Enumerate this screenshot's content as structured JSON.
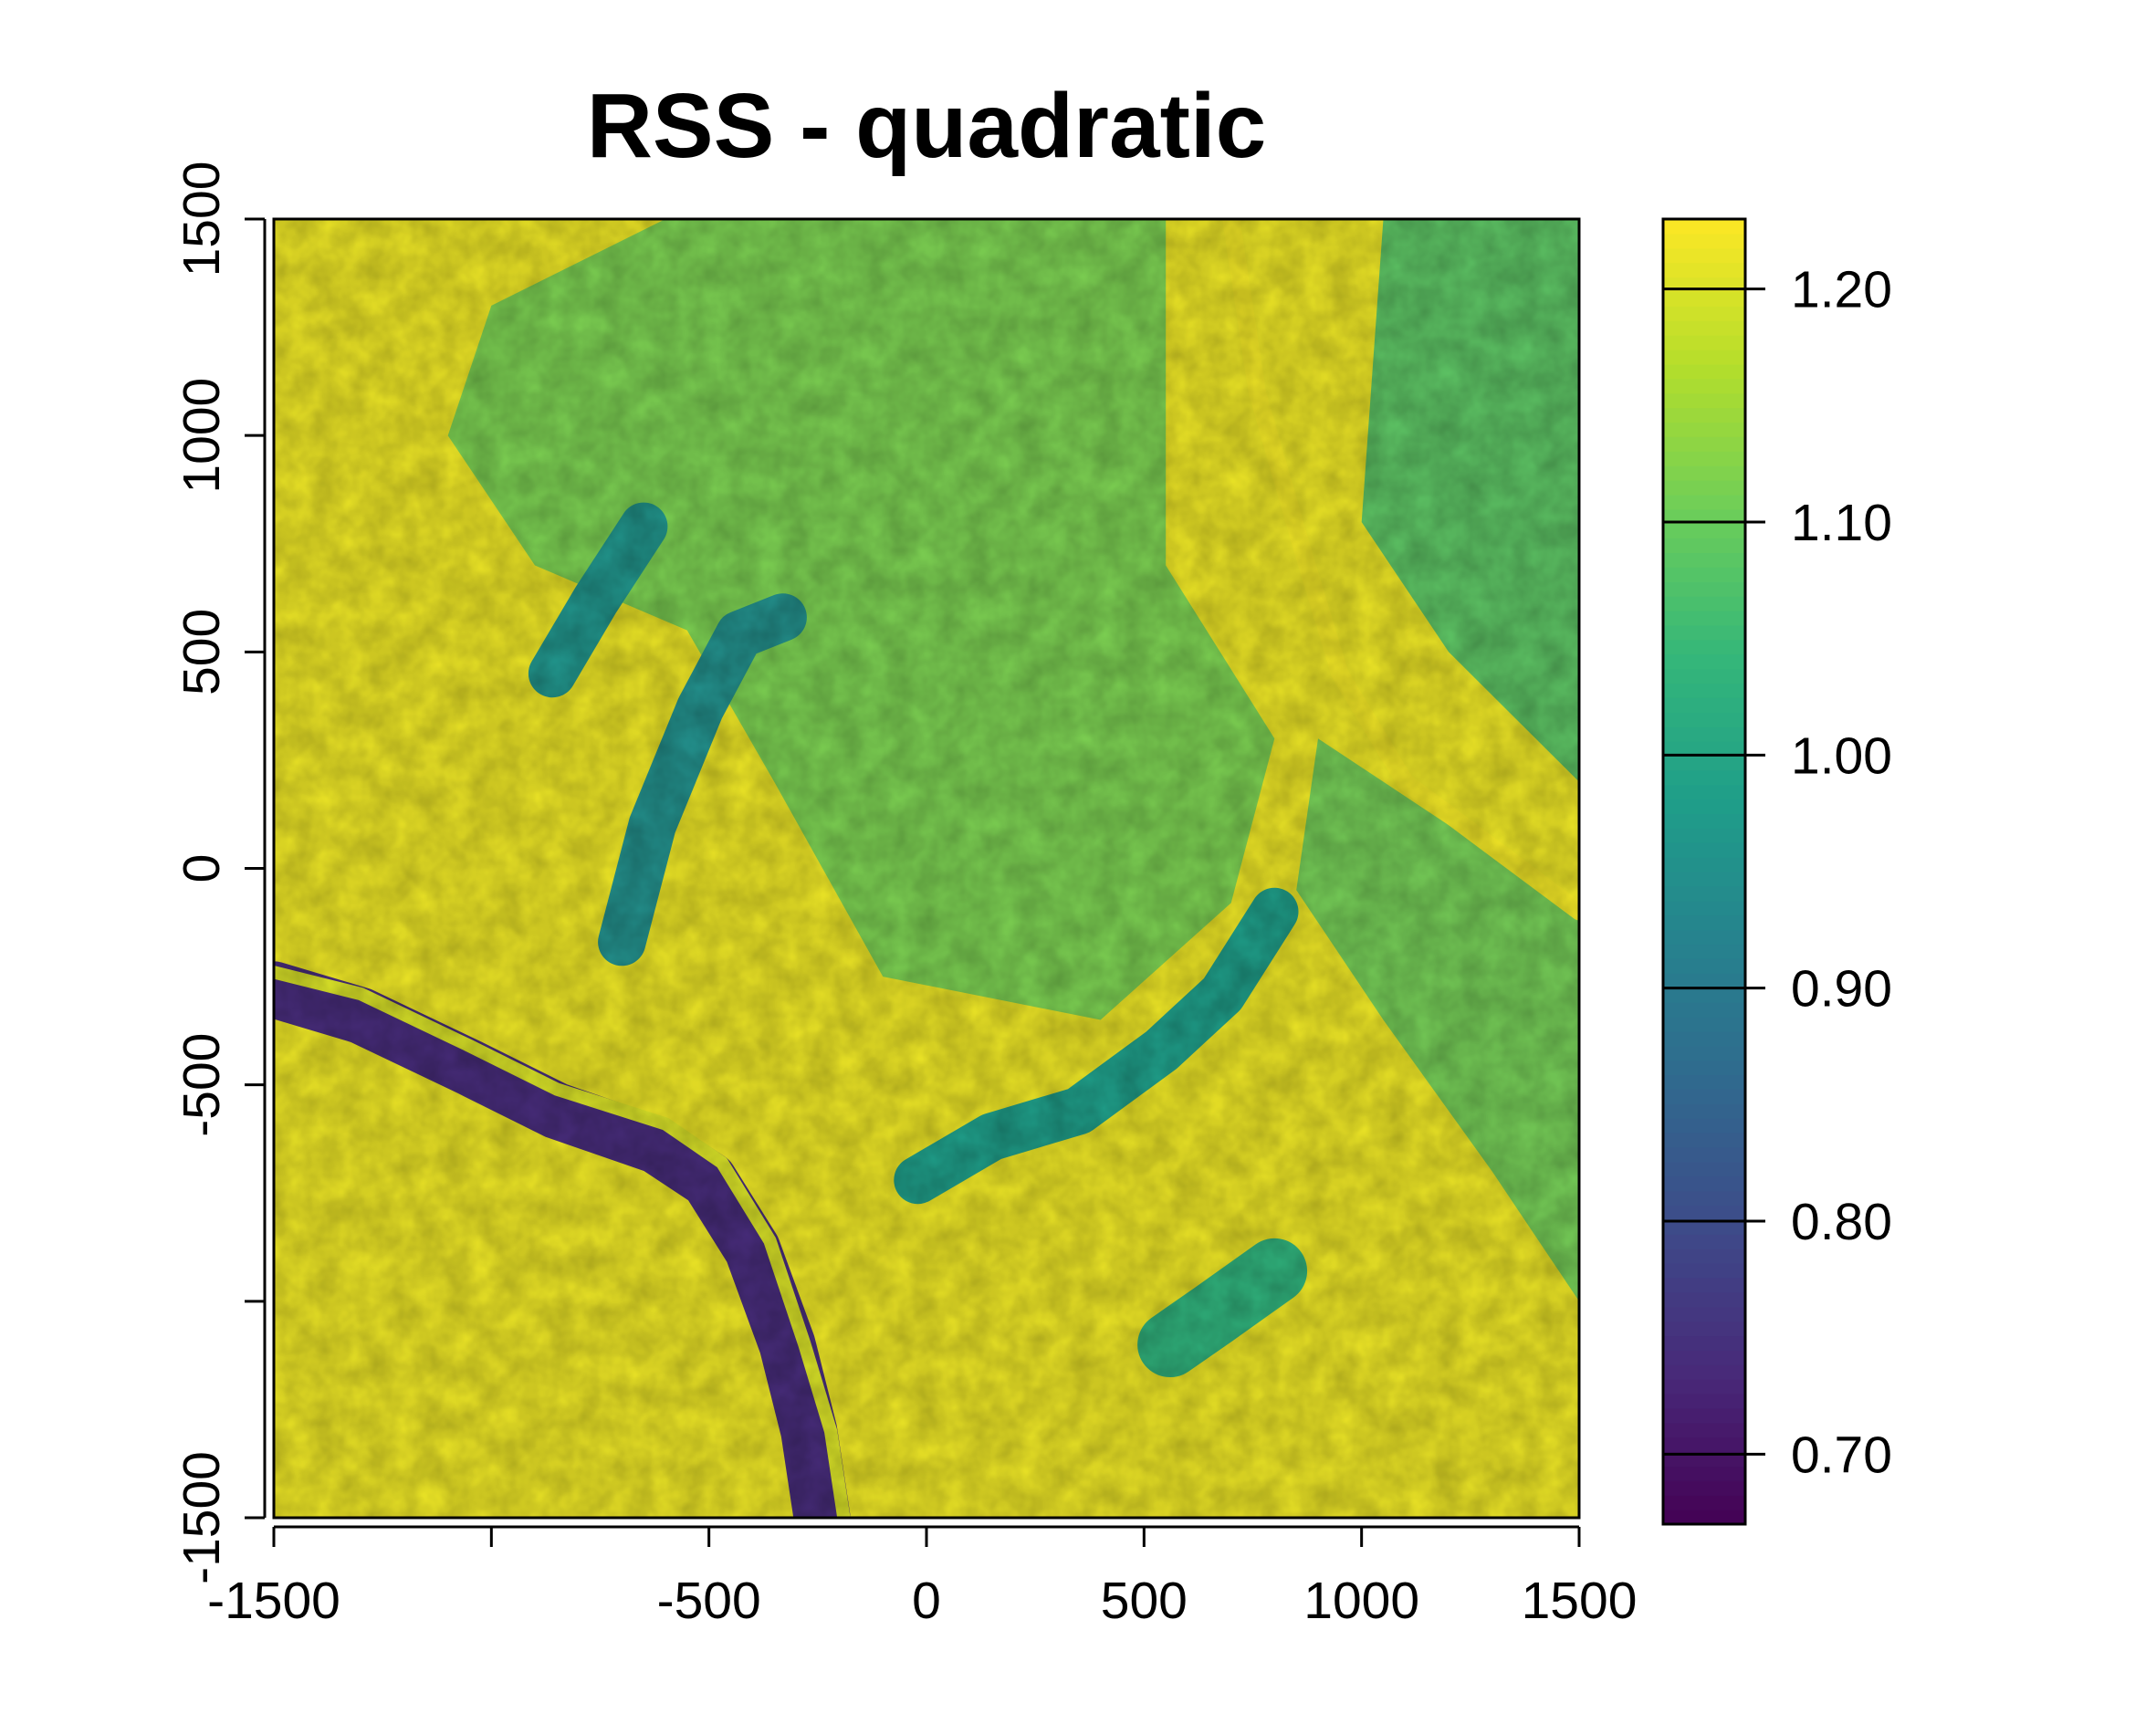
{
  "chart_data": {
    "type": "heatmap",
    "title": "RSS - quadratic",
    "xlabel": "",
    "ylabel": "",
    "xlim": [
      -1500,
      1500
    ],
    "ylim": [
      -1500,
      1500
    ],
    "x_ticks": [
      -1500,
      -1000,
      -500,
      0,
      500,
      1000,
      1500
    ],
    "x_tick_labels": [
      "-1500",
      "",
      "-500",
      "0",
      "500",
      "1000",
      "1500"
    ],
    "y_ticks": [
      -1500,
      -1000,
      -500,
      0,
      500,
      1000,
      1500
    ],
    "y_tick_labels": [
      "-1500",
      "",
      "-500",
      "0",
      "500",
      "1000",
      "1500"
    ],
    "colorbar": {
      "range": [
        0.67,
        1.23
      ],
      "ticks": [
        0.7,
        0.8,
        0.9,
        1.0,
        1.1,
        1.2
      ],
      "tick_labels": [
        "0.70",
        "0.80",
        "0.90",
        "1.00",
        "1.10",
        "1.20"
      ],
      "palette": [
        "#440154",
        "#482878",
        "#3e4989",
        "#31688e",
        "#26828e",
        "#1f9e89",
        "#35b779",
        "#6ece58",
        "#b5de2b",
        "#fde725"
      ]
    },
    "features": [
      {
        "name": "dark river channel",
        "polyline": [
          [
            -1500,
            -280
          ],
          [
            -1300,
            -340
          ],
          [
            -1050,
            -460
          ],
          [
            -850,
            -560
          ],
          [
            -620,
            -640
          ],
          [
            -500,
            -720
          ],
          [
            -400,
            -880
          ],
          [
            -320,
            -1100
          ],
          [
            -270,
            -1300
          ],
          [
            -240,
            -1500
          ]
        ],
        "value": 0.74,
        "width": 130
      },
      {
        "name": "river bank light strip",
        "polyline": [
          [
            -1500,
            -240
          ],
          [
            -1300,
            -290
          ],
          [
            -1050,
            -410
          ],
          [
            -850,
            -510
          ],
          [
            -600,
            -590
          ],
          [
            -470,
            -680
          ],
          [
            -360,
            -860
          ],
          [
            -280,
            -1100
          ],
          [
            -220,
            -1300
          ],
          [
            -190,
            -1500
          ]
        ],
        "value": 1.2,
        "width": 30
      },
      {
        "name": "teal ridge north-west",
        "polyline": [
          [
            -860,
            450
          ],
          [
            -760,
            620
          ],
          [
            -650,
            790
          ]
        ],
        "value": 0.96,
        "width": 110
      },
      {
        "name": "teal ridge central",
        "polyline": [
          [
            -700,
            -170
          ],
          [
            -630,
            100
          ],
          [
            -520,
            370
          ],
          [
            -430,
            540
          ],
          [
            -330,
            580
          ]
        ],
        "value": 0.95,
        "width": 110
      },
      {
        "name": "teal ridge south",
        "polyline": [
          [
            -20,
            -720
          ],
          [
            150,
            -620
          ],
          [
            350,
            -560
          ],
          [
            540,
            -420
          ],
          [
            680,
            -290
          ],
          [
            800,
            -100
          ]
        ],
        "value": 0.98,
        "width": 110
      },
      {
        "name": "green patch south-east",
        "polyline": [
          [
            560,
            -1100
          ],
          [
            660,
            -1030
          ],
          [
            800,
            -930
          ]
        ],
        "value": 1.03,
        "width": 150
      },
      {
        "name": "green upland",
        "polygon": [
          [
            -600,
            1500
          ],
          [
            550,
            1500
          ],
          [
            550,
            700
          ],
          [
            800,
            300
          ],
          [
            700,
            -80
          ],
          [
            400,
            -350
          ],
          [
            -100,
            -250
          ],
          [
            -350,
            200
          ],
          [
            -550,
            550
          ],
          [
            -900,
            700
          ],
          [
            -1100,
            1000
          ],
          [
            -1000,
            1300
          ]
        ],
        "value": 1.1
      },
      {
        "name": "green north-east",
        "polygon": [
          [
            1050,
            1500
          ],
          [
            1500,
            1500
          ],
          [
            1500,
            200
          ],
          [
            1200,
            500
          ],
          [
            1000,
            800
          ]
        ],
        "value": 1.06
      },
      {
        "name": "green east",
        "polygon": [
          [
            900,
            300
          ],
          [
            1500,
            -100
          ],
          [
            1500,
            -1000
          ],
          [
            1300,
            -700
          ],
          [
            1050,
            -350
          ],
          [
            850,
            -50
          ]
        ],
        "value": 1.09
      },
      {
        "name": "yellow diagonal road",
        "polyline": [
          [
            700,
            1500
          ],
          [
            760,
            1100
          ],
          [
            860,
            750
          ],
          [
            950,
            450
          ],
          [
            1100,
            200
          ],
          [
            1300,
            50
          ],
          [
            1500,
            -100
          ]
        ],
        "value": 1.22,
        "width": 40
      }
    ]
  }
}
